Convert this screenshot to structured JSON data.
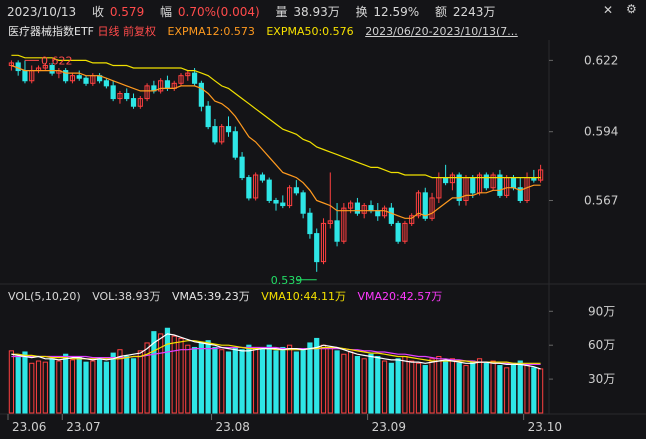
{
  "header": {
    "date": "2023/10/13",
    "close_label": "收",
    "close_value": "0.579",
    "change_label": "幅",
    "change_value": "0.70%(0.004)",
    "volume_label": "量",
    "volume_value": "38.93万",
    "turnover_label": "换",
    "turnover_value": "12.59%",
    "amount_label": "额",
    "amount_value": "2243万"
  },
  "info": {
    "name": "医疗器械指数ETF",
    "period": "日线",
    "adjust": "前复权",
    "ema12": "EXPMA12:0.573",
    "ema50": "EXPMA50:0.576",
    "range": "2023/06/20-2023/10/13(7..."
  },
  "vol_legend": {
    "title": "VOL(5,10,20)",
    "vol": "VOL:38.93万",
    "vma5": "VMA5:39.23万",
    "vma10": "VMA10:44.11万",
    "vma20": "VMA20:42.57万"
  },
  "icons": {
    "close": "close-icon",
    "settings": "gear-icon"
  },
  "colors": {
    "up": "#ff4040",
    "down": "#2ee6e6",
    "ema12": "#ff9a1f",
    "ema50": "#f0e000",
    "vma5": "#ffffff",
    "vma10": "#f5e000",
    "vma20": "#e040ff",
    "bg": "#141417"
  },
  "chart_data": {
    "type": "candlestick",
    "price_axis": {
      "ticks": [
        "0.622",
        "0.594",
        "0.567"
      ],
      "tick_values": [
        0.622,
        0.594,
        0.567
      ],
      "ylim": [
        0.535,
        0.63
      ]
    },
    "volume_axis": {
      "ticks": [
        "90万",
        "60万",
        "30万"
      ],
      "tick_values": [
        90,
        60,
        30
      ],
      "ylim": [
        0,
        100
      ]
    },
    "x_ticks": [
      "23.06",
      "23.07",
      "23.08",
      "23.09",
      "23.10"
    ],
    "x_tick_index": [
      0,
      8,
      30,
      53,
      76
    ],
    "annotations": {
      "high_label": "0.622",
      "high_index": 2,
      "high_value": 0.622,
      "low_label": "0.539",
      "low_index": 45,
      "low_value": 0.539
    },
    "candles": [
      [
        0.62,
        0.622,
        0.618,
        0.621
      ],
      [
        0.621,
        0.622,
        0.616,
        0.618
      ],
      [
        0.618,
        0.622,
        0.613,
        0.614
      ],
      [
        0.614,
        0.62,
        0.613,
        0.618
      ],
      [
        0.618,
        0.62,
        0.617,
        0.619
      ],
      [
        0.619,
        0.621,
        0.618,
        0.62
      ],
      [
        0.62,
        0.621,
        0.616,
        0.617
      ],
      [
        0.617,
        0.619,
        0.615,
        0.618
      ],
      [
        0.618,
        0.619,
        0.613,
        0.614
      ],
      [
        0.614,
        0.617,
        0.613,
        0.616
      ],
      [
        0.616,
        0.618,
        0.614,
        0.615
      ],
      [
        0.615,
        0.616,
        0.612,
        0.613
      ],
      [
        0.613,
        0.617,
        0.612,
        0.616
      ],
      [
        0.616,
        0.617,
        0.613,
        0.614
      ],
      [
        0.614,
        0.615,
        0.611,
        0.612
      ],
      [
        0.612,
        0.614,
        0.606,
        0.607
      ],
      [
        0.607,
        0.61,
        0.605,
        0.609
      ],
      [
        0.609,
        0.611,
        0.606,
        0.607
      ],
      [
        0.607,
        0.609,
        0.603,
        0.604
      ],
      [
        0.604,
        0.608,
        0.603,
        0.607
      ],
      [
        0.607,
        0.613,
        0.606,
        0.612
      ],
      [
        0.612,
        0.614,
        0.609,
        0.61
      ],
      [
        0.61,
        0.615,
        0.609,
        0.614
      ],
      [
        0.614,
        0.616,
        0.61,
        0.611
      ],
      [
        0.611,
        0.614,
        0.61,
        0.613
      ],
      [
        0.613,
        0.617,
        0.612,
        0.616
      ],
      [
        0.616,
        0.618,
        0.614,
        0.617
      ],
      [
        0.617,
        0.619,
        0.612,
        0.613
      ],
      [
        0.613,
        0.614,
        0.602,
        0.604
      ],
      [
        0.604,
        0.606,
        0.595,
        0.596
      ],
      [
        0.596,
        0.599,
        0.589,
        0.59
      ],
      [
        0.59,
        0.597,
        0.589,
        0.596
      ],
      [
        0.596,
        0.6,
        0.592,
        0.594
      ],
      [
        0.594,
        0.596,
        0.583,
        0.584
      ],
      [
        0.584,
        0.586,
        0.575,
        0.576
      ],
      [
        0.576,
        0.577,
        0.567,
        0.568
      ],
      [
        0.568,
        0.578,
        0.567,
        0.577
      ],
      [
        0.577,
        0.578,
        0.574,
        0.575
      ],
      [
        0.575,
        0.576,
        0.566,
        0.567
      ],
      [
        0.567,
        0.568,
        0.563,
        0.566
      ],
      [
        0.566,
        0.569,
        0.564,
        0.565
      ],
      [
        0.565,
        0.573,
        0.564,
        0.572
      ],
      [
        0.572,
        0.575,
        0.569,
        0.57
      ],
      [
        0.57,
        0.571,
        0.56,
        0.562
      ],
      [
        0.562,
        0.564,
        0.552,
        0.554
      ],
      [
        0.554,
        0.556,
        0.539,
        0.543
      ],
      [
        0.543,
        0.56,
        0.542,
        0.558
      ],
      [
        0.558,
        0.578,
        0.556,
        0.559
      ],
      [
        0.559,
        0.566,
        0.549,
        0.551
      ],
      [
        0.551,
        0.566,
        0.55,
        0.564
      ],
      [
        0.564,
        0.567,
        0.562,
        0.566
      ],
      [
        0.566,
        0.568,
        0.561,
        0.562
      ],
      [
        0.562,
        0.566,
        0.56,
        0.565
      ],
      [
        0.565,
        0.567,
        0.562,
        0.563
      ],
      [
        0.563,
        0.566,
        0.559,
        0.561
      ],
      [
        0.561,
        0.565,
        0.56,
        0.564
      ],
      [
        0.564,
        0.566,
        0.557,
        0.558
      ],
      [
        0.558,
        0.559,
        0.55,
        0.551
      ],
      [
        0.551,
        0.559,
        0.55,
        0.558
      ],
      [
        0.558,
        0.562,
        0.557,
        0.561
      ],
      [
        0.561,
        0.571,
        0.56,
        0.57
      ],
      [
        0.57,
        0.572,
        0.559,
        0.56
      ],
      [
        0.56,
        0.57,
        0.559,
        0.568
      ],
      [
        0.568,
        0.578,
        0.566,
        0.576
      ],
      [
        0.576,
        0.581,
        0.573,
        0.574
      ],
      [
        0.574,
        0.578,
        0.571,
        0.577
      ],
      [
        0.577,
        0.578,
        0.565,
        0.567
      ],
      [
        0.567,
        0.577,
        0.565,
        0.576
      ],
      [
        0.576,
        0.577,
        0.568,
        0.57
      ],
      [
        0.57,
        0.578,
        0.569,
        0.577
      ],
      [
        0.577,
        0.578,
        0.571,
        0.572
      ],
      [
        0.572,
        0.578,
        0.571,
        0.577
      ],
      [
        0.577,
        0.579,
        0.568,
        0.569
      ],
      [
        0.569,
        0.577,
        0.568,
        0.576
      ],
      [
        0.576,
        0.577,
        0.571,
        0.572
      ],
      [
        0.572,
        0.576,
        0.566,
        0.567
      ],
      [
        0.567,
        0.578,
        0.566,
        0.576
      ],
      [
        0.576,
        0.579,
        0.574,
        0.575
      ],
      [
        0.575,
        0.581,
        0.574,
        0.579
      ]
    ],
    "volumes": [
      55,
      50,
      54,
      44,
      46,
      45,
      48,
      46,
      52,
      47,
      50,
      45,
      46,
      48,
      45,
      53,
      56,
      50,
      48,
      55,
      62,
      72,
      70,
      75,
      68,
      66,
      60,
      58,
      62,
      64,
      58,
      56,
      54,
      58,
      56,
      60,
      58,
      56,
      60,
      55,
      58,
      60,
      54,
      56,
      62,
      66,
      60,
      58,
      55,
      52,
      54,
      50,
      48,
      52,
      50,
      46,
      44,
      48,
      50,
      46,
      44,
      42,
      48,
      50,
      46,
      48,
      44,
      42,
      46,
      48,
      44,
      46,
      42,
      40,
      44,
      46,
      42,
      40,
      39
    ],
    "ema12": [
      0.62,
      0.619,
      0.618,
      0.618,
      0.618,
      0.618,
      0.618,
      0.618,
      0.617,
      0.617,
      0.617,
      0.616,
      0.616,
      0.616,
      0.615,
      0.614,
      0.613,
      0.612,
      0.611,
      0.61,
      0.61,
      0.61,
      0.611,
      0.611,
      0.611,
      0.612,
      0.612,
      0.612,
      0.611,
      0.609,
      0.606,
      0.605,
      0.603,
      0.6,
      0.596,
      0.592,
      0.59,
      0.587,
      0.584,
      0.581,
      0.578,
      0.577,
      0.576,
      0.574,
      0.571,
      0.567,
      0.566,
      0.565,
      0.563,
      0.563,
      0.563,
      0.563,
      0.563,
      0.563,
      0.563,
      0.563,
      0.562,
      0.561,
      0.56,
      0.56,
      0.562,
      0.561,
      0.562,
      0.564,
      0.566,
      0.568,
      0.568,
      0.569,
      0.569,
      0.57,
      0.57,
      0.571,
      0.571,
      0.572,
      0.572,
      0.571,
      0.572,
      0.573,
      0.573
    ],
    "ema50": [
      0.624,
      0.624,
      0.623,
      0.623,
      0.623,
      0.623,
      0.623,
      0.622,
      0.622,
      0.622,
      0.622,
      0.622,
      0.621,
      0.621,
      0.621,
      0.62,
      0.62,
      0.62,
      0.619,
      0.619,
      0.619,
      0.619,
      0.619,
      0.619,
      0.619,
      0.619,
      0.618,
      0.618,
      0.617,
      0.616,
      0.614,
      0.612,
      0.611,
      0.609,
      0.607,
      0.605,
      0.603,
      0.601,
      0.599,
      0.597,
      0.595,
      0.594,
      0.593,
      0.591,
      0.59,
      0.588,
      0.587,
      0.586,
      0.585,
      0.584,
      0.583,
      0.582,
      0.581,
      0.58,
      0.58,
      0.579,
      0.578,
      0.578,
      0.577,
      0.577,
      0.577,
      0.577,
      0.576,
      0.576,
      0.576,
      0.576,
      0.576,
      0.576,
      0.576,
      0.576,
      0.576,
      0.576,
      0.576,
      0.576,
      0.576,
      0.576,
      0.576,
      0.576,
      0.576
    ],
    "vma5": [
      52,
      51,
      50,
      49,
      50,
      48,
      48,
      47,
      48,
      49,
      49,
      48,
      47,
      48,
      47,
      48,
      50,
      51,
      52,
      53,
      57,
      62,
      66,
      70,
      69,
      67,
      65,
      63,
      62,
      61,
      60,
      58,
      57,
      56,
      55,
      55,
      56,
      57,
      57,
      57,
      56,
      57,
      57,
      56,
      57,
      58,
      60,
      59,
      58,
      56,
      54,
      52,
      51,
      50,
      49,
      48,
      47,
      47,
      46,
      45,
      45,
      44,
      45,
      46,
      47,
      46,
      45,
      44,
      44,
      45,
      45,
      44,
      44,
      43,
      43,
      43,
      42,
      41,
      39
    ],
    "vma10": [
      52,
      52,
      51,
      51,
      50,
      50,
      49,
      49,
      49,
      48,
      48,
      48,
      48,
      48,
      48,
      48,
      48,
      49,
      50,
      50,
      52,
      55,
      58,
      61,
      62,
      63,
      64,
      64,
      63,
      62,
      61,
      60,
      60,
      59,
      58,
      57,
      57,
      57,
      57,
      56,
      56,
      56,
      56,
      56,
      57,
      57,
      58,
      58,
      58,
      57,
      56,
      55,
      54,
      53,
      53,
      52,
      51,
      50,
      50,
      49,
      48,
      47,
      46,
      46,
      46,
      46,
      46,
      46,
      45,
      45,
      45,
      45,
      45,
      45,
      44,
      44,
      44,
      44,
      44
    ],
    "vma20": [
      50,
      50,
      50,
      50,
      50,
      50,
      50,
      50,
      50,
      50,
      50,
      50,
      49,
      49,
      49,
      49,
      49,
      49,
      50,
      50,
      51,
      52,
      53,
      54,
      55,
      56,
      56,
      57,
      57,
      57,
      57,
      58,
      58,
      58,
      58,
      58,
      58,
      58,
      58,
      58,
      57,
      57,
      57,
      57,
      57,
      57,
      57,
      57,
      57,
      57,
      56,
      56,
      55,
      55,
      54,
      54,
      53,
      52,
      52,
      51,
      50,
      50,
      49,
      48,
      48,
      47,
      47,
      46,
      46,
      45,
      45,
      45,
      44,
      44,
      43,
      43,
      43,
      43,
      43
    ]
  }
}
